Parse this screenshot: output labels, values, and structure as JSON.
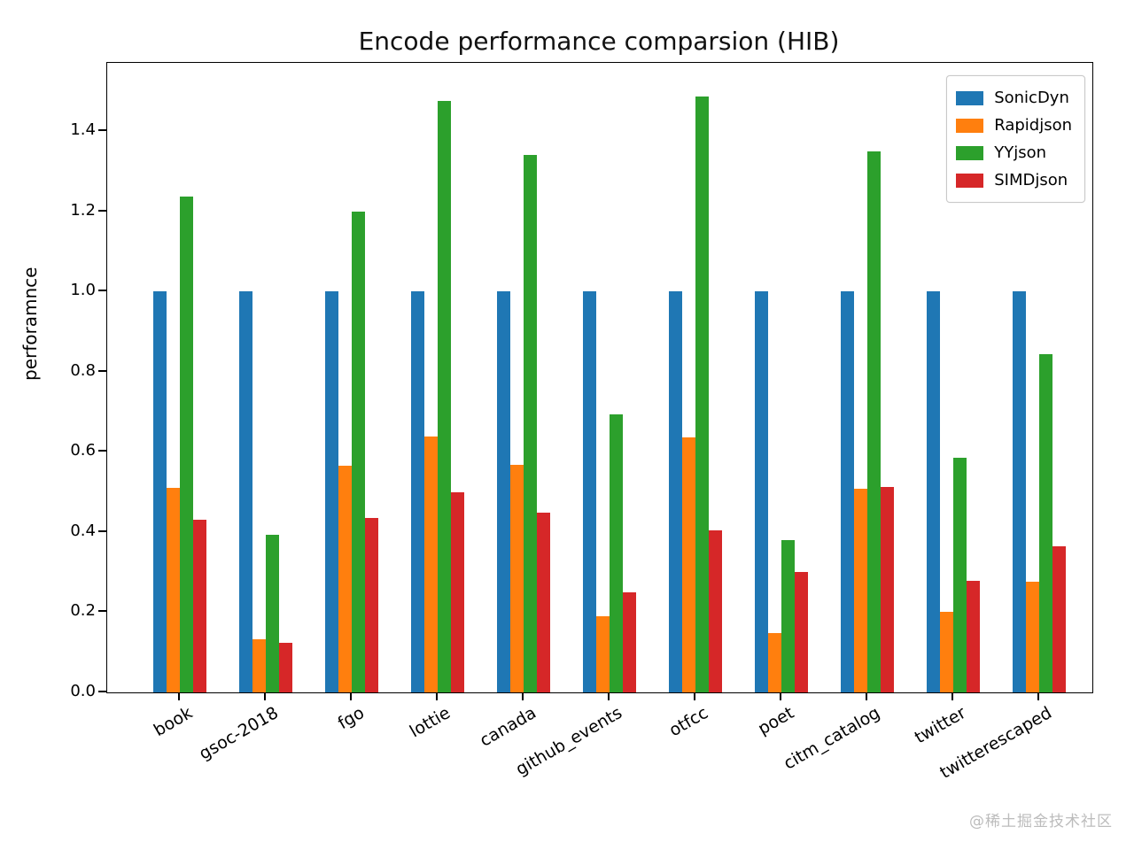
{
  "title": "Encode performance comparsion (HIB)",
  "ylabel": "perforamnce",
  "watermark": "@稀土掘金技术社区",
  "chart_data": {
    "type": "bar",
    "title": "Encode performance comparsion (HIB)",
    "xlabel": "",
    "ylabel": "perforamnce",
    "categories": [
      "book",
      "gsoc-2018",
      "fgo",
      "lottie",
      "canada",
      "github_events",
      "otfcc",
      "poet",
      "citm_catalog",
      "twitter",
      "twitterescaped"
    ],
    "series": [
      {
        "name": "SonicDyn",
        "color": "#1f77b4",
        "values": [
          1.0,
          1.0,
          1.0,
          1.0,
          1.0,
          1.0,
          1.0,
          1.0,
          1.0,
          1.0,
          1.0
        ]
      },
      {
        "name": "Rapidjson",
        "color": "#ff7f0e",
        "values": [
          0.51,
          0.133,
          0.565,
          0.638,
          0.567,
          0.19,
          0.635,
          0.147,
          0.507,
          0.202,
          0.276
        ]
      },
      {
        "name": "YYjson",
        "color": "#2ca02c",
        "values": [
          1.236,
          0.393,
          1.199,
          1.474,
          1.34,
          0.694,
          1.486,
          0.379,
          1.35,
          0.586,
          0.844
        ]
      },
      {
        "name": "SIMDjson",
        "color": "#d62728",
        "values": [
          0.431,
          0.124,
          0.434,
          0.499,
          0.449,
          0.25,
          0.405,
          0.3,
          0.513,
          0.279,
          0.364
        ]
      }
    ],
    "ylim": [
      0,
      1.57
    ],
    "yticks": [
      0.0,
      0.2,
      0.4,
      0.6,
      0.8,
      1.0,
      1.2,
      1.4
    ],
    "grid": false,
    "legend_position": "upper right"
  }
}
